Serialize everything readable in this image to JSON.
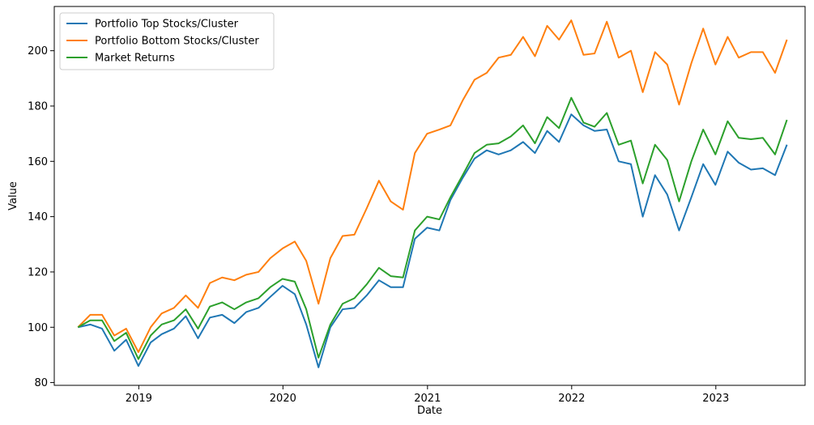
{
  "chart_data": {
    "type": "line",
    "title": "",
    "xlabel": "Date",
    "ylabel": "Value",
    "xlim": [
      "2018-06-01",
      "2023-08-15"
    ],
    "ylim": [
      79,
      216
    ],
    "x_ticks": [
      {
        "date": "2019-01-01",
        "label": "2019"
      },
      {
        "date": "2020-01-01",
        "label": "2020"
      },
      {
        "date": "2021-01-01",
        "label": "2021"
      },
      {
        "date": "2022-01-01",
        "label": "2022"
      },
      {
        "date": "2023-01-01",
        "label": "2023"
      }
    ],
    "y_ticks": [
      80,
      100,
      120,
      140,
      160,
      180,
      200
    ],
    "grid": false,
    "legend_position": "top-left",
    "x": [
      "2018-07-31",
      "2018-08-31",
      "2018-09-30",
      "2018-10-31",
      "2018-11-30",
      "2018-12-31",
      "2019-01-31",
      "2019-02-28",
      "2019-03-31",
      "2019-04-30",
      "2019-05-31",
      "2019-06-30",
      "2019-07-31",
      "2019-08-31",
      "2019-09-30",
      "2019-10-31",
      "2019-11-30",
      "2019-12-31",
      "2020-01-31",
      "2020-02-29",
      "2020-03-31",
      "2020-04-30",
      "2020-05-31",
      "2020-06-30",
      "2020-07-31",
      "2020-08-31",
      "2020-09-30",
      "2020-10-31",
      "2020-11-30",
      "2020-12-31",
      "2021-01-31",
      "2021-02-28",
      "2021-03-31",
      "2021-04-30",
      "2021-05-31",
      "2021-06-30",
      "2021-07-31",
      "2021-08-31",
      "2021-09-30",
      "2021-10-31",
      "2021-11-30",
      "2021-12-31",
      "2022-01-31",
      "2022-02-28",
      "2022-03-31",
      "2022-04-30",
      "2022-05-31",
      "2022-06-30",
      "2022-07-31",
      "2022-08-31",
      "2022-09-30",
      "2022-10-31",
      "2022-11-30",
      "2022-12-31",
      "2023-01-31",
      "2023-02-28",
      "2023-03-31",
      "2023-04-30",
      "2023-05-31",
      "2023-06-30"
    ],
    "series": [
      {
        "name": "Portfolio Top Stocks/Cluster",
        "color": "#1f77b4",
        "values": [
          100,
          101,
          99.5,
          91.5,
          95.5,
          86,
          94.5,
          97.5,
          99.5,
          104,
          96,
          103.5,
          104.5,
          101.5,
          105.5,
          107,
          111,
          115,
          112,
          101,
          85.5,
          100,
          106.5,
          107,
          111.5,
          117,
          114.5,
          114.5,
          132,
          136,
          135,
          146,
          154,
          161,
          164,
          162.5,
          164,
          167,
          163,
          171,
          167,
          177,
          173,
          171,
          171.5,
          160,
          159,
          140,
          155,
          148,
          135,
          147,
          159,
          151.5,
          163.5,
          159.5,
          157,
          157.5,
          155,
          166
        ]
      },
      {
        "name": "Portfolio Bottom Stocks/Cluster",
        "color": "#ff7f0e",
        "values": [
          100,
          104.5,
          104.5,
          97,
          99.5,
          91,
          100,
          105,
          107,
          111.5,
          107,
          116,
          118,
          117,
          119,
          120,
          125,
          128.5,
          131,
          124,
          108.5,
          125,
          133,
          133.5,
          143,
          153,
          145.5,
          142.5,
          163,
          170,
          171.5,
          173,
          182,
          189.5,
          192,
          197.5,
          198.5,
          205,
          198,
          209,
          204,
          211,
          198.5,
          199,
          210.5,
          197.5,
          200,
          185,
          199.5,
          195,
          180.5,
          195.5,
          208,
          195,
          205,
          197.5,
          199.5,
          199.5,
          192,
          204
        ]
      },
      {
        "name": "Market Returns",
        "color": "#2ca02c",
        "values": [
          100,
          102.5,
          102.5,
          95,
          98,
          88.5,
          97,
          101,
          102.5,
          106.5,
          99.5,
          107.5,
          109,
          106.5,
          109,
          110.5,
          114.5,
          117.5,
          116.5,
          106.5,
          89,
          101,
          108.5,
          110.5,
          115.5,
          121.5,
          118.5,
          118,
          135,
          140,
          139,
          147,
          155,
          163,
          166,
          166.5,
          169,
          173,
          166.5,
          176,
          172,
          183,
          174,
          172.5,
          177.5,
          166,
          167.5,
          152,
          166,
          160.5,
          145.5,
          160,
          171.5,
          162.5,
          174.5,
          168.5,
          168,
          168.5,
          162.5,
          175
        ]
      }
    ]
  }
}
